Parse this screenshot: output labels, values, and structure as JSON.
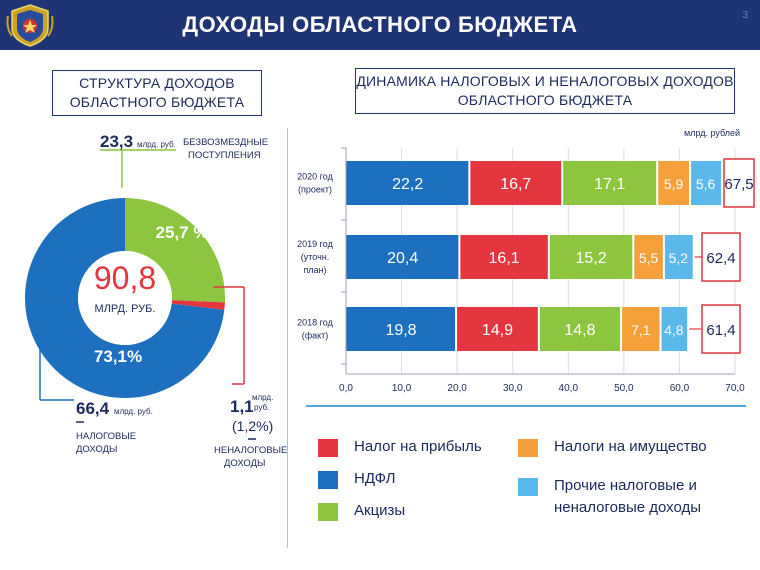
{
  "header": {
    "title": "ДОХОДЫ ОБЛАСТНОГО БЮДЖЕТА",
    "page_number": "3",
    "logo_icon": "coat-of-arms-icon"
  },
  "left_panel": {
    "title_line1": "СТРУКТУРА ДОХОДОВ",
    "title_line2": "ОБЛАСТНОГО БЮДЖЕТА",
    "donut": {
      "type": "pie",
      "center_value": "90,8",
      "center_unit": "МЛРД. РУБ.",
      "segments": [
        {
          "key": "tax",
          "share": 73.1,
          "pct_label": "73,1%",
          "color": "#1d70bf"
        },
        {
          "key": "grants",
          "share": 25.7,
          "pct_label": "25,7 %",
          "color": "#8cc63f"
        },
        {
          "key": "nontax",
          "share": 1.2,
          "pct_label": "",
          "color": "#e3363f"
        }
      ]
    },
    "callouts": {
      "grants_value": "23,3",
      "grants_unit": "млрд. руб.",
      "grants_label_line1": "БЕЗВОЗМЕЗДНЫЕ",
      "grants_label_line2": "ПОСТУПЛЕНИЯ",
      "tax_value": "66,4",
      "tax_unit": "млрд. руб.",
      "tax_label_line1": "НАЛОГОВЫЕ",
      "tax_label_line2": "ДОХОДЫ",
      "nontax_value": "1,1",
      "nontax_unit_line1": "млрд.",
      "nontax_unit_line2": "руб.",
      "nontax_pct": "(1,2%)",
      "nontax_label_line1": "НЕНАЛОГОВЫЕ",
      "nontax_label_line2": "ДОХОДЫ"
    }
  },
  "right_panel": {
    "title_line1": "ДИНАМИКА  НАЛОГОВЫХ И НЕНАЛОГОВЫХ ДОХОДОВ",
    "title_line2": "ОБЛАСТНОГО БЮДЖЕТА"
  },
  "chart_data": {
    "type": "bar",
    "orientation": "horizontal",
    "stacked": true,
    "unit_label": "млрд. рублей",
    "xlim": [
      0,
      70
    ],
    "x_ticks": [
      "0,0",
      "10,0",
      "20,0",
      "30,0",
      "40,0",
      "50,0",
      "60,0",
      "70,0"
    ],
    "x_tick_values": [
      0,
      10,
      20,
      30,
      40,
      50,
      60,
      70
    ],
    "grid": "vertical",
    "categories": [
      {
        "label_line1": "2020 год",
        "label_line2": "(проект)",
        "label_line3": "",
        "total": "67,5"
      },
      {
        "label_line1": "2019 год",
        "label_line2": "(уточн.",
        "label_line3": "план)",
        "total": "62,4"
      },
      {
        "label_line1": "2018 год",
        "label_line2": "(факт)",
        "label_line3": "",
        "total": "61,4"
      }
    ],
    "series": [
      {
        "name": "НДФЛ",
        "color": "#1d70bf",
        "values": [
          22.2,
          20.4,
          19.8
        ],
        "labels": [
          "22,2",
          "20,4",
          "19,8"
        ]
      },
      {
        "name": "Налог на прибыль",
        "color": "#e3363f",
        "values": [
          16.7,
          16.1,
          14.9
        ],
        "labels": [
          "16,7",
          "16,1",
          "14,9"
        ]
      },
      {
        "name": "Акцизы",
        "color": "#8cc63f",
        "values": [
          17.1,
          15.2,
          14.8
        ],
        "labels": [
          "17,1",
          "15,2",
          "14,8"
        ]
      },
      {
        "name": "Налоги на имущество",
        "color": "#f5a03a",
        "values": [
          5.9,
          5.5,
          7.1
        ],
        "labels": [
          "5,9",
          "5,5",
          "7,1"
        ]
      },
      {
        "name": "Прочие налоговые и неналоговые доходы",
        "color": "#5ab8ea",
        "values": [
          5.6,
          5.2,
          4.8
        ],
        "labels": [
          "5,6",
          "5,2",
          "4,8"
        ]
      }
    ],
    "legend": {
      "placement": "bottom",
      "items": [
        {
          "line1": "Налог на прибыль",
          "line2": "",
          "color": "#e3363f"
        },
        {
          "line1": "Налоги на имущество",
          "line2": "",
          "color": "#f5a03a"
        },
        {
          "line1": "НДФЛ",
          "line2": "",
          "color": "#1d70bf"
        },
        {
          "line1": "Прочие налоговые и",
          "line2": "неналоговые доходы",
          "color": "#5ab8ea"
        },
        {
          "line1": "Акцизы",
          "line2": "",
          "color": "#8cc63f"
        }
      ]
    }
  }
}
